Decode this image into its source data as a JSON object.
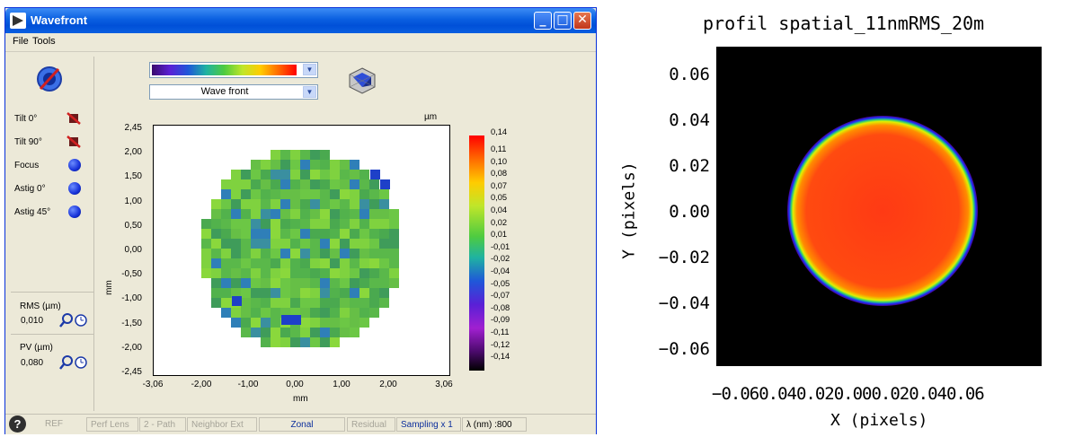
{
  "window": {
    "title": "Wavefront",
    "menu": [
      {
        "label": "File",
        "accel": "F"
      },
      {
        "label": "Tools",
        "accel": "T"
      }
    ],
    "colormap_select": {
      "value": ""
    },
    "view_select": {
      "value": "Wave front"
    },
    "zernike": [
      {
        "label": "Tilt 0°",
        "icon": "tilt-0-icon"
      },
      {
        "label": "Tilt 90°",
        "icon": "tilt-90-icon"
      },
      {
        "label": "Focus",
        "icon": "focus-icon"
      },
      {
        "label": "Astig 0°",
        "icon": "astig-0-icon"
      },
      {
        "label": "Astig 45°",
        "icon": "astig-45-icon"
      }
    ],
    "rms": {
      "label": "RMS (µm)",
      "value": "0,010"
    },
    "pv": {
      "label": "PV (µm)",
      "value": "0,080"
    },
    "plot": {
      "unit_label": "µm",
      "yticks": [
        "2,45",
        "2,00",
        "1,50",
        "1,00",
        "0,50",
        "0,00",
        "-0,50",
        "-1,00",
        "-1,50",
        "-2,00",
        "-2,45"
      ],
      "xticks": [
        "-3,06",
        "-2,00",
        "-1,00",
        "0,00",
        "1,00",
        "2,00",
        "3,06"
      ],
      "ylabel": "mm",
      "xlabel": "mm",
      "colorbar": [
        "0,14",
        "0,11",
        "0,10",
        "0,08",
        "0,07",
        "0,05",
        "0,04",
        "0,02",
        "0,01",
        "-0,01",
        "-0,02",
        "-0,04",
        "-0,05",
        "-0,07",
        "-0,08",
        "-0,09",
        "-0,11",
        "-0,12",
        "-0,14"
      ]
    },
    "status": [
      {
        "label": "REF",
        "active": false
      },
      {
        "label": "Perf Lens",
        "active": false
      },
      {
        "label": "2 - Path",
        "active": false
      },
      {
        "label": "Neighbor Ext",
        "active": false
      },
      {
        "label": "Zonal",
        "active": true
      },
      {
        "label": "Residual",
        "active": false
      },
      {
        "label": "Sampling x 1",
        "active": true
      },
      {
        "label": "λ (nm) :800",
        "active": true
      }
    ],
    "help_icon": "?"
  },
  "profile": {
    "title": "profil spatial_11nmRMS_20m",
    "ylabel": "Y (pixels)",
    "xlabel": "X (pixels)",
    "yticks": [
      "0.06",
      "0.04",
      "0.02",
      "0.00",
      "−0.02",
      "−0.04",
      "−0.06"
    ],
    "xticks_text": "−0.060.040.020.000.020.040.06"
  }
}
